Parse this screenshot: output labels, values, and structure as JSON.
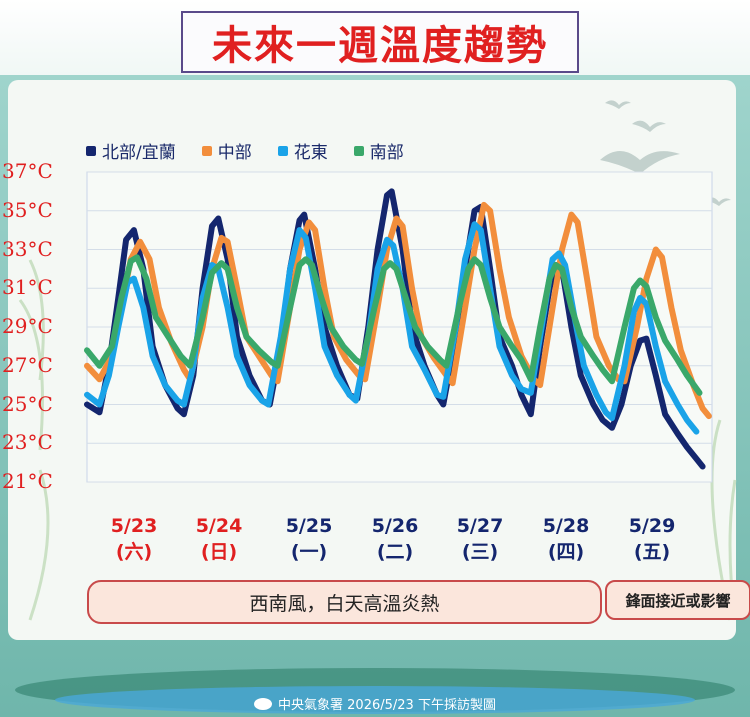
{
  "header": {
    "title": "未來一週溫度趨勢"
  },
  "chart_data": {
    "type": "line",
    "ylabel": "",
    "ylim": [
      21,
      37
    ],
    "yticks": [
      "37°C",
      "35°C",
      "33°C",
      "31°C",
      "29°C",
      "27°C",
      "25°C",
      "23°C",
      "21°C"
    ],
    "legend_position": "top-left",
    "series": [
      {
        "name": "北部/宜蘭",
        "color": "#14266e",
        "points": [
          [
            0,
            25.0
          ],
          [
            0.4,
            24.6
          ],
          [
            0.7,
            27
          ],
          [
            1.0,
            30.5
          ],
          [
            1.25,
            33.5
          ],
          [
            1.5,
            34.0
          ],
          [
            1.8,
            32
          ],
          [
            2.1,
            28
          ],
          [
            2.5,
            26
          ],
          [
            2.9,
            24.8
          ],
          [
            3.1,
            24.5
          ],
          [
            3.4,
            26.5
          ],
          [
            3.7,
            31
          ],
          [
            4.0,
            34.2
          ],
          [
            4.2,
            34.6
          ],
          [
            4.5,
            32.5
          ],
          [
            4.8,
            28.5
          ],
          [
            5.2,
            26.5
          ],
          [
            5.6,
            25.2
          ],
          [
            5.85,
            25.0
          ],
          [
            6.2,
            28
          ],
          [
            6.5,
            32
          ],
          [
            6.8,
            34.5
          ],
          [
            6.95,
            34.8
          ],
          [
            7.3,
            32
          ],
          [
            7.6,
            29
          ],
          [
            8.0,
            27
          ],
          [
            8.4,
            25.5
          ],
          [
            8.65,
            25.3
          ],
          [
            9.0,
            29
          ],
          [
            9.3,
            33
          ],
          [
            9.6,
            35.8
          ],
          [
            9.75,
            36.0
          ],
          [
            10.1,
            33
          ],
          [
            10.4,
            29
          ],
          [
            10.8,
            27
          ],
          [
            11.2,
            25.5
          ],
          [
            11.4,
            25.0
          ],
          [
            11.8,
            28.5
          ],
          [
            12.1,
            32
          ],
          [
            12.4,
            35.0
          ],
          [
            12.6,
            35.2
          ],
          [
            12.9,
            32
          ],
          [
            13.2,
            28.5
          ],
          [
            13.6,
            27
          ],
          [
            13.9,
            25.5
          ],
          [
            14.2,
            24.5
          ],
          [
            14.5,
            28
          ],
          [
            14.8,
            31
          ],
          [
            15.0,
            32.2
          ],
          [
            15.2,
            32.0
          ],
          [
            15.5,
            29
          ],
          [
            15.8,
            26.5
          ],
          [
            16.2,
            25
          ],
          [
            16.5,
            24.2
          ],
          [
            16.8,
            23.8
          ],
          [
            17.1,
            25
          ],
          [
            17.4,
            27
          ],
          [
            17.7,
            28.3
          ],
          [
            17.9,
            28.4
          ],
          [
            18.2,
            26.5
          ],
          [
            18.5,
            24.5
          ],
          [
            18.9,
            23.5
          ],
          [
            19.2,
            22.8
          ],
          [
            19.5,
            22.2
          ],
          [
            19.7,
            21.8
          ]
        ]
      },
      {
        "name": "中部",
        "color": "#f28e3c",
        "points": [
          [
            0,
            27.0
          ],
          [
            0.4,
            26.3
          ],
          [
            0.8,
            27.5
          ],
          [
            1.1,
            30
          ],
          [
            1.4,
            32.5
          ],
          [
            1.7,
            33.4
          ],
          [
            2.0,
            32.5
          ],
          [
            2.3,
            30
          ],
          [
            2.7,
            28.2
          ],
          [
            3.1,
            26.8
          ],
          [
            3.3,
            26.3
          ],
          [
            3.7,
            29
          ],
          [
            4.0,
            32
          ],
          [
            4.3,
            33.6
          ],
          [
            4.5,
            33.4
          ],
          [
            4.8,
            31
          ],
          [
            5.1,
            28.5
          ],
          [
            5.5,
            27.5
          ],
          [
            5.9,
            26.5
          ],
          [
            6.1,
            26.2
          ],
          [
            6.5,
            30
          ],
          [
            6.8,
            33
          ],
          [
            7.1,
            34.4
          ],
          [
            7.3,
            34.0
          ],
          [
            7.6,
            31
          ],
          [
            7.9,
            28.5
          ],
          [
            8.3,
            27.3
          ],
          [
            8.7,
            26.5
          ],
          [
            8.9,
            26.3
          ],
          [
            9.3,
            30
          ],
          [
            9.6,
            33
          ],
          [
            9.9,
            34.6
          ],
          [
            10.1,
            34.2
          ],
          [
            10.4,
            31
          ],
          [
            10.7,
            28.5
          ],
          [
            11.1,
            27.4
          ],
          [
            11.5,
            26.5
          ],
          [
            11.7,
            26.1
          ],
          [
            12.1,
            30
          ],
          [
            12.4,
            33
          ],
          [
            12.7,
            35.3
          ],
          [
            12.9,
            35.0
          ],
          [
            13.2,
            32
          ],
          [
            13.5,
            29.5
          ],
          [
            13.9,
            27.5
          ],
          [
            14.3,
            26.3
          ],
          [
            14.5,
            26.0
          ],
          [
            14.9,
            30
          ],
          [
            15.2,
            33
          ],
          [
            15.5,
            34.8
          ],
          [
            15.7,
            34.4
          ],
          [
            16.0,
            31.5
          ],
          [
            16.3,
            28.5
          ],
          [
            16.7,
            27
          ],
          [
            17.0,
            26.3
          ],
          [
            17.2,
            26.2
          ],
          [
            17.6,
            29
          ],
          [
            17.9,
            31.5
          ],
          [
            18.2,
            33.0
          ],
          [
            18.4,
            32.6
          ],
          [
            18.7,
            30
          ],
          [
            19.0,
            27.8
          ],
          [
            19.4,
            26
          ],
          [
            19.7,
            24.8
          ],
          [
            19.9,
            24.4
          ]
        ]
      },
      {
        "name": "花東",
        "color": "#1aa3e8",
        "points": [
          [
            0,
            25.5
          ],
          [
            0.4,
            25.0
          ],
          [
            0.7,
            26.5
          ],
          [
            1.0,
            29
          ],
          [
            1.3,
            31.3
          ],
          [
            1.5,
            31.5
          ],
          [
            1.8,
            30
          ],
          [
            2.1,
            27.5
          ],
          [
            2.5,
            26
          ],
          [
            2.9,
            25.2
          ],
          [
            3.1,
            25.0
          ],
          [
            3.4,
            27
          ],
          [
            3.7,
            30.5
          ],
          [
            4.0,
            32.2
          ],
          [
            4.2,
            32.0
          ],
          [
            4.5,
            30
          ],
          [
            4.8,
            27.5
          ],
          [
            5.2,
            26
          ],
          [
            5.6,
            25.2
          ],
          [
            5.8,
            25.0
          ],
          [
            6.2,
            28.5
          ],
          [
            6.5,
            32
          ],
          [
            6.8,
            34.0
          ],
          [
            7.0,
            33.6
          ],
          [
            7.3,
            31
          ],
          [
            7.6,
            28
          ],
          [
            8.0,
            26.5
          ],
          [
            8.4,
            25.5
          ],
          [
            8.6,
            25.2
          ],
          [
            9.0,
            28.5
          ],
          [
            9.3,
            32
          ],
          [
            9.6,
            33.5
          ],
          [
            9.8,
            33.2
          ],
          [
            10.1,
            31
          ],
          [
            10.4,
            28
          ],
          [
            10.8,
            26.8
          ],
          [
            11.2,
            25.5
          ],
          [
            11.4,
            25.4
          ],
          [
            11.8,
            29
          ],
          [
            12.1,
            32.5
          ],
          [
            12.4,
            34.3
          ],
          [
            12.6,
            34.0
          ],
          [
            12.9,
            31
          ],
          [
            13.2,
            28
          ],
          [
            13.6,
            26.5
          ],
          [
            13.9,
            25.8
          ],
          [
            14.2,
            25.6
          ],
          [
            14.6,
            29.5
          ],
          [
            14.9,
            32.5
          ],
          [
            15.1,
            32.8
          ],
          [
            15.3,
            32.2
          ],
          [
            15.6,
            29.5
          ],
          [
            15.9,
            27
          ],
          [
            16.3,
            25.5
          ],
          [
            16.6,
            24.6
          ],
          [
            16.8,
            24.3
          ],
          [
            17.2,
            27
          ],
          [
            17.5,
            29.8
          ],
          [
            17.7,
            30.5
          ],
          [
            17.9,
            30.2
          ],
          [
            18.2,
            28
          ],
          [
            18.5,
            26.2
          ],
          [
            18.9,
            25
          ],
          [
            19.2,
            24.2
          ],
          [
            19.5,
            23.6
          ]
        ]
      },
      {
        "name": "南部",
        "color": "#3aa86a",
        "points": [
          [
            0,
            27.8
          ],
          [
            0.4,
            27.0
          ],
          [
            0.8,
            28
          ],
          [
            1.1,
            30.5
          ],
          [
            1.4,
            32.4
          ],
          [
            1.6,
            32.6
          ],
          [
            1.9,
            31.5
          ],
          [
            2.2,
            29.5
          ],
          [
            2.6,
            28.5
          ],
          [
            3.0,
            27.5
          ],
          [
            3.3,
            27.0
          ],
          [
            3.7,
            29.5
          ],
          [
            4.0,
            31.8
          ],
          [
            4.3,
            32.3
          ],
          [
            4.5,
            32.0
          ],
          [
            4.8,
            30
          ],
          [
            5.1,
            28.5
          ],
          [
            5.5,
            27.8
          ],
          [
            5.9,
            27.2
          ],
          [
            6.1,
            27.0
          ],
          [
            6.5,
            30
          ],
          [
            6.8,
            32.2
          ],
          [
            7.0,
            32.5
          ],
          [
            7.2,
            32.2
          ],
          [
            7.5,
            30.5
          ],
          [
            7.8,
            29
          ],
          [
            8.2,
            28
          ],
          [
            8.6,
            27.3
          ],
          [
            8.8,
            27.1
          ],
          [
            9.2,
            30
          ],
          [
            9.5,
            32
          ],
          [
            9.7,
            32.3
          ],
          [
            9.9,
            32
          ],
          [
            10.2,
            30.5
          ],
          [
            10.5,
            29
          ],
          [
            10.9,
            28
          ],
          [
            11.3,
            27.3
          ],
          [
            11.5,
            27.0
          ],
          [
            11.9,
            30
          ],
          [
            12.2,
            32
          ],
          [
            12.4,
            32.5
          ],
          [
            12.6,
            32.2
          ],
          [
            12.9,
            30.5
          ],
          [
            13.2,
            29
          ],
          [
            13.6,
            28
          ],
          [
            13.9,
            27.3
          ],
          [
            14.2,
            26.3
          ],
          [
            14.5,
            29
          ],
          [
            14.8,
            31.5
          ],
          [
            15.0,
            32.2
          ],
          [
            15.2,
            32.0
          ],
          [
            15.5,
            30
          ],
          [
            15.8,
            28.5
          ],
          [
            16.2,
            27.5
          ],
          [
            16.5,
            26.8
          ],
          [
            16.8,
            26.2
          ],
          [
            17.2,
            29
          ],
          [
            17.5,
            31
          ],
          [
            17.7,
            31.4
          ],
          [
            17.9,
            31.1
          ],
          [
            18.2,
            29.5
          ],
          [
            18.5,
            28.3
          ],
          [
            18.9,
            27.3
          ],
          [
            19.2,
            26.5
          ],
          [
            19.6,
            25.6
          ]
        ]
      }
    ],
    "x_categories": [
      {
        "date": "5/23",
        "day": "(六)",
        "color": "#e02020"
      },
      {
        "date": "5/24",
        "day": "(日)",
        "color": "#e02020"
      },
      {
        "date": "5/25",
        "day": "(一)",
        "color": "#14266e"
      },
      {
        "date": "5/26",
        "day": "(二)",
        "color": "#14266e"
      },
      {
        "date": "5/27",
        "day": "(三)",
        "color": "#14266e"
      },
      {
        "date": "5/28",
        "day": "(四)",
        "color": "#14266e"
      },
      {
        "date": "5/29",
        "day": "(五)",
        "color": "#14266e"
      }
    ]
  },
  "notes": {
    "main": "西南風，白天高溫炎熱",
    "side": "鋒面接近或影響"
  },
  "footer": {
    "text": "中央氣象署 2026/5/23 下午採訪製圖"
  }
}
